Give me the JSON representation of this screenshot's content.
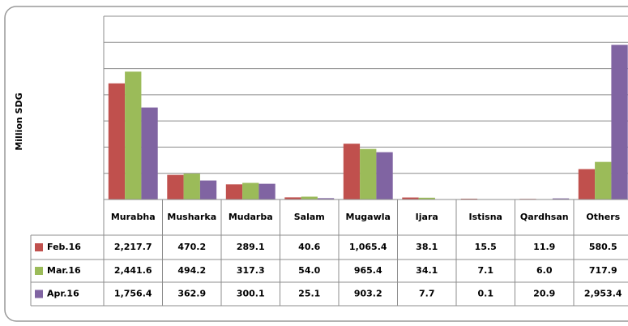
{
  "chart_data": {
    "type": "bar",
    "y_label": "Million SDG",
    "categories": [
      "Murabha",
      "Musharka",
      "Mudarba",
      "Salam",
      "Mugawla",
      "Ijara",
      "Istisna",
      "Qardhsan",
      "Others"
    ],
    "ylim": [
      0,
      3500
    ],
    "yticks": [
      0,
      500,
      1000,
      1500,
      2000,
      2500,
      3000,
      3500
    ],
    "grid": true,
    "series": [
      {
        "name": "Feb.16",
        "color": "#c0504d",
        "values": [
          2217.7,
          470.2,
          289.1,
          40.6,
          1065.4,
          38.1,
          15.5,
          11.9,
          580.5
        ],
        "value_labels": [
          "2,217.7",
          "470.2",
          "289.1",
          "40.6",
          "1,065.4",
          "38.1",
          "15.5",
          "11.9",
          "580.5"
        ]
      },
      {
        "name": "Mar.16",
        "color": "#9bbb59",
        "values": [
          2441.6,
          494.2,
          317.3,
          54.0,
          965.4,
          34.1,
          7.1,
          6.0,
          717.9
        ],
        "value_labels": [
          "2,441.6",
          "494.2",
          "317.3",
          "54.0",
          "965.4",
          "34.1",
          "7.1",
          "6.0",
          "717.9"
        ]
      },
      {
        "name": "Apr.16",
        "color": "#8064a2",
        "values": [
          1756.4,
          362.9,
          300.1,
          25.1,
          903.2,
          7.7,
          0.1,
          20.9,
          2953.4
        ],
        "value_labels": [
          "1,756.4",
          "362.9",
          "300.1",
          "25.1",
          "903.2",
          "7.7",
          "0.1",
          "20.9",
          "2,953.4"
        ]
      }
    ]
  }
}
